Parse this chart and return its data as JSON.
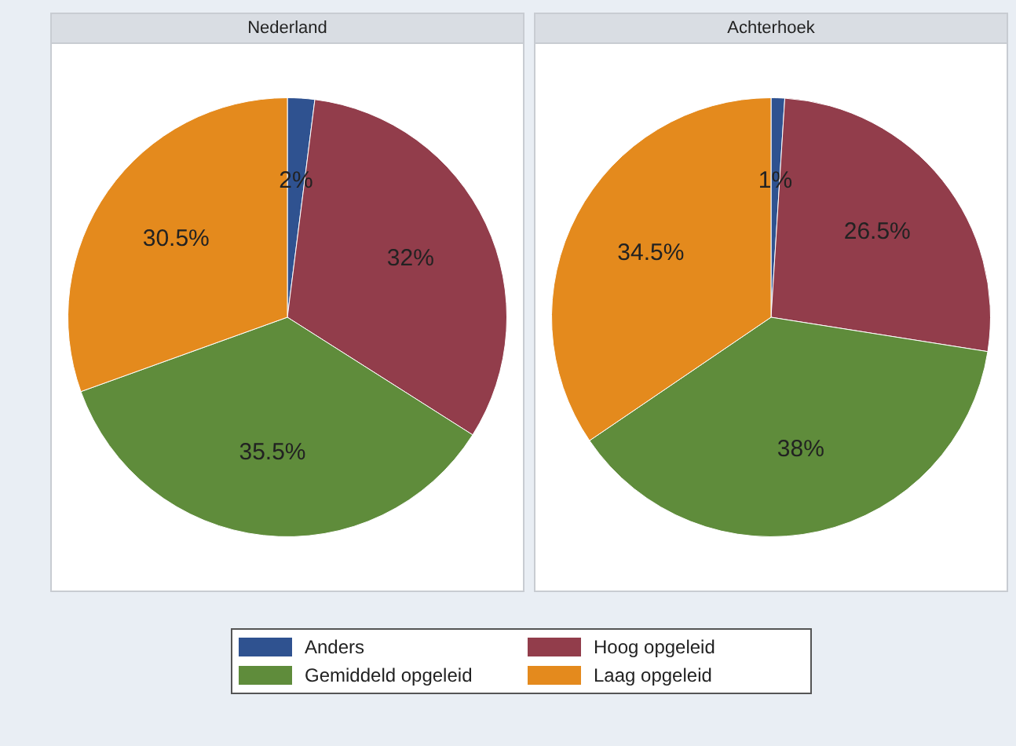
{
  "chart_data": [
    {
      "type": "pie",
      "title": "Nederland",
      "categories": [
        "Anders",
        "Hoog opgeleid",
        "Gemiddeld opgeleid",
        "Laag opgeleid"
      ],
      "values": [
        2,
        32,
        35.5,
        30.5
      ],
      "colors": [
        "#2f5290",
        "#923d4b",
        "#5f8c3b",
        "#e48a1d"
      ],
      "value_labels": [
        "2%",
        "32%",
        "35.5%",
        "30.5%"
      ],
      "legend": "bottom"
    },
    {
      "type": "pie",
      "title": "Achterhoek",
      "categories": [
        null,
        null,
        null,
        null
      ],
      "values": [
        1,
        26.5,
        38,
        34.5
      ],
      "colors": [
        "#2f5290",
        "#923d4b",
        "#5f8c3b",
        "#e48a1d"
      ],
      "value_labels": [
        "1%",
        "26.5%",
        "38%",
        "34.5%"
      ]
    }
  ]
}
